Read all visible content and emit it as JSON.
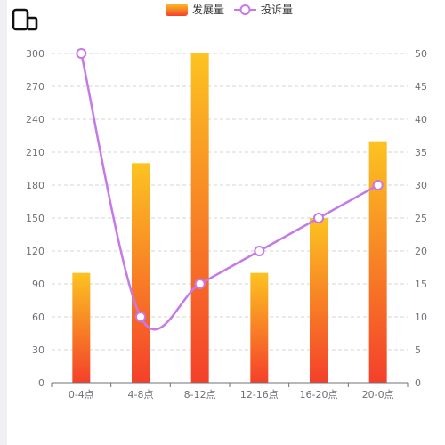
{
  "toolbar": {
    "icon": "device-toggle-icon"
  },
  "chart_data": {
    "type": "bar",
    "categories": [
      "0-4点",
      "4-8点",
      "8-12点",
      "12-16点",
      "16-20点",
      "20-0点"
    ],
    "series": [
      {
        "name": "发展量",
        "type": "bar",
        "axis": "left",
        "values": [
          100,
          200,
          300,
          100,
          150,
          220
        ],
        "color_top": "#fcc321",
        "color_bottom": "#f4402a"
      },
      {
        "name": "投诉量",
        "type": "line",
        "smooth": true,
        "axis": "right",
        "values": [
          50,
          10,
          15,
          20,
          25,
          30
        ],
        "color": "#c678e6"
      }
    ],
    "y_left": {
      "min": 0,
      "max": 300,
      "ticks": [
        0,
        30,
        60,
        90,
        120,
        150,
        180,
        210,
        240,
        270,
        300
      ]
    },
    "y_right": {
      "min": 0,
      "max": 50,
      "ticks": [
        0,
        5,
        10,
        15,
        20,
        25,
        30,
        35,
        40,
        45,
        50
      ]
    },
    "grid": true,
    "legend_position": "top-center"
  }
}
